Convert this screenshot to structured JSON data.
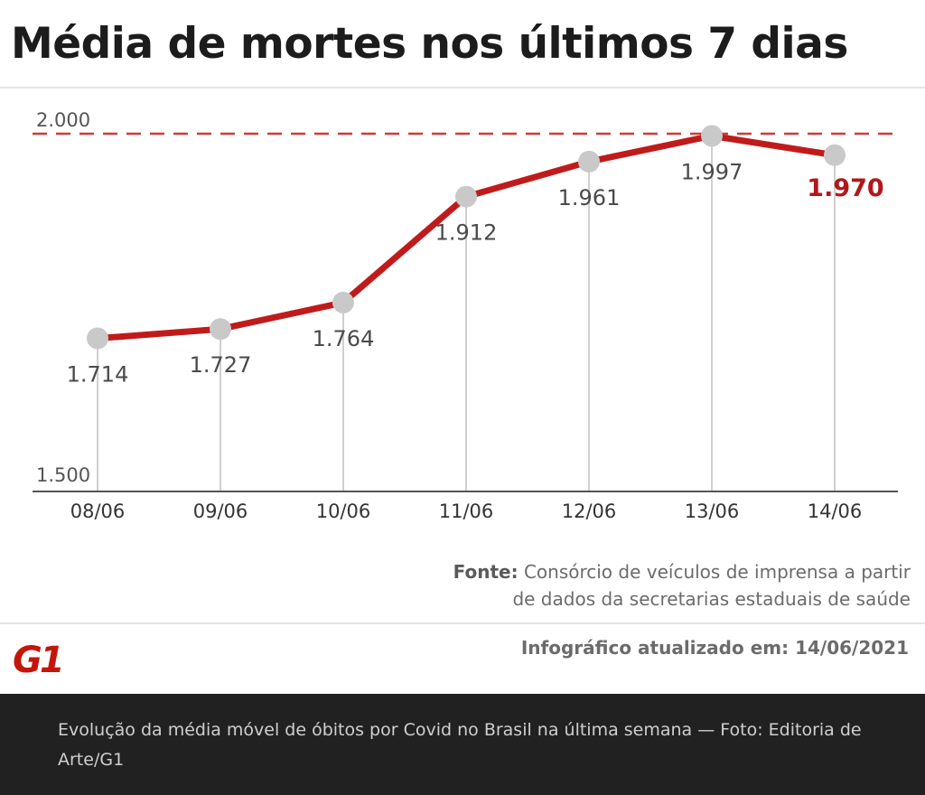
{
  "title": "Média de mortes nos últimos 7 dias",
  "chart_data": {
    "type": "line",
    "title": "Média de mortes nos últimos 7 dias",
    "categories": [
      "08/06",
      "09/06",
      "10/06",
      "11/06",
      "12/06",
      "13/06",
      "14/06"
    ],
    "values": [
      1714,
      1727,
      1764,
      1912,
      1961,
      1997,
      1970
    ],
    "value_labels": [
      "1.714",
      "1.727",
      "1.764",
      "1.912",
      "1.961",
      "1.997",
      "1.970"
    ],
    "ylim": [
      1500,
      2000
    ],
    "y_tick_labels": [
      "2.000",
      "1.500"
    ],
    "reference_line": {
      "value": 2000,
      "style": "dashed"
    },
    "highlight_last": true,
    "xlabel": "",
    "ylabel": "",
    "grid": false
  },
  "source": {
    "label": "Fonte:",
    "line1": "Consórcio de veículos de imprensa a partir",
    "line2": "de dados da secretarias estaduais de saúde"
  },
  "logo_text": "G1",
  "updated": "Infográfico atualizado em: 14/06/2021",
  "caption": "Evolução da média móvel de óbitos por Covid no Brasil na última semana — Foto: Editoria de Arte/G1",
  "colors": {
    "line": "#c01b1b",
    "marker": "#c9c9c9",
    "highlight_text": "#b3161b",
    "text": "#4a4a4a",
    "caption_bg": "#212121"
  }
}
